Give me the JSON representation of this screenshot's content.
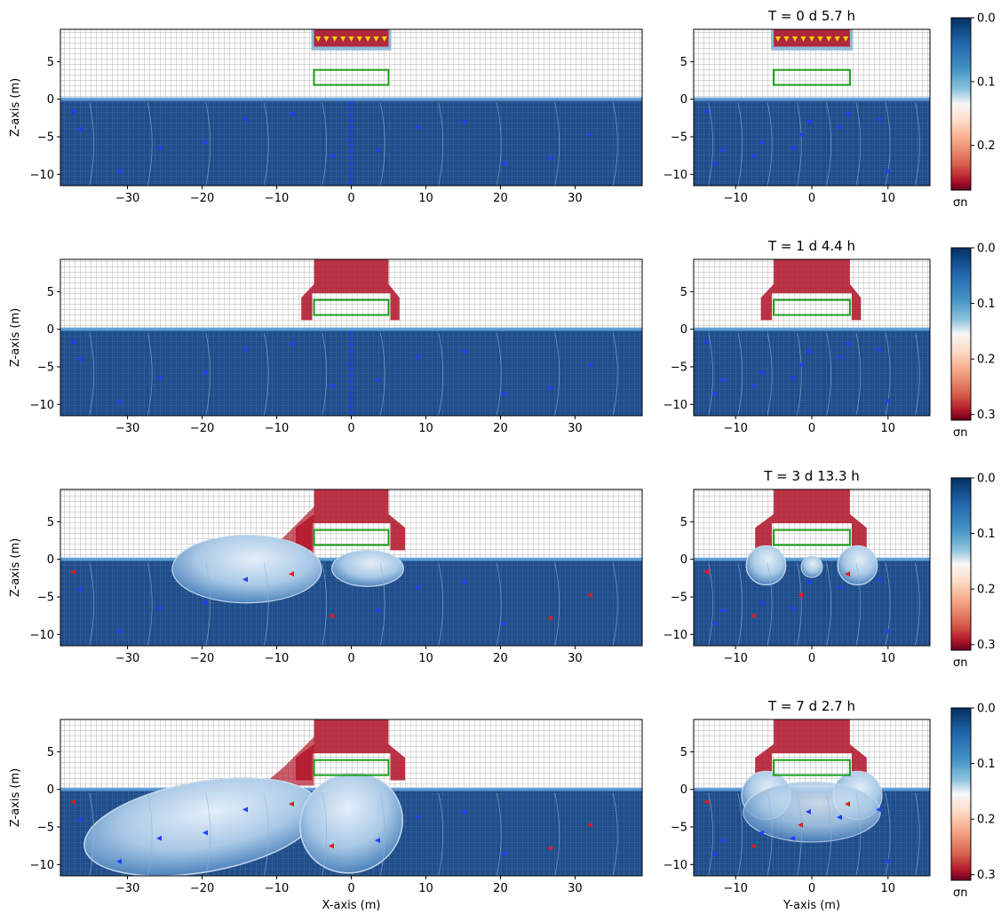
{
  "chart_data": {
    "type": "heatmap",
    "colorbar": {
      "label": "σn",
      "colormap": "RdBu",
      "max_color": "#67001f",
      "min_color": "#053061"
    },
    "panel_colors": {
      "water": "#1f4e8c",
      "interface": "#5a9bd5",
      "fracture": "#b2182b",
      "well_box": "#1a9e1a",
      "injection_arrows_initial": "#ffd400",
      "flow_arrows_red": "#e31a1c",
      "flow_arrows_blue": "#1f3fff"
    },
    "rows": [
      {
        "time_label": "T = 0 d  5.7 h",
        "stage": 0,
        "xz": {
          "xlabel": "",
          "ylabel": "Z-axis (m)",
          "xticks": [
            "−30",
            "−20",
            "−10",
            "0",
            "10",
            "20",
            "30"
          ],
          "yticks": [
            "0",
            "−5",
            "−10",
            "5"
          ],
          "xlim": [
            -39,
            39
          ],
          "ylim": [
            -11.5,
            9.3
          ]
        },
        "yz": {
          "xlabel": "",
          "xticks": [
            "−10",
            "0",
            "10"
          ],
          "yticks": [
            "0",
            "−5",
            "−10",
            "5"
          ],
          "xlim": [
            -15.5,
            15.5
          ],
          "ylim": [
            -11.5,
            9.3
          ]
        },
        "colorbar_ticks": [
          "0.0",
          "0.1",
          "0.2"
        ],
        "colorbar_range": [
          0,
          0.27
        ]
      },
      {
        "time_label": "T = 1 d  4.4 h",
        "stage": 1,
        "xz": {
          "xlabel": "",
          "ylabel": "Z-axis (m)",
          "xticks": [
            "−30",
            "−20",
            "−10",
            "0",
            "10",
            "20",
            "30"
          ],
          "yticks": [
            "0",
            "−5",
            "−10",
            "5"
          ],
          "xlim": [
            -39,
            39
          ],
          "ylim": [
            -11.5,
            9.3
          ]
        },
        "yz": {
          "xlabel": "",
          "xticks": [
            "−10",
            "0",
            "10"
          ],
          "yticks": [
            "0",
            "−5",
            "−10",
            "5"
          ],
          "xlim": [
            -15.5,
            15.5
          ],
          "ylim": [
            -11.5,
            9.3
          ]
        },
        "colorbar_ticks": [
          "0.0",
          "0.1",
          "0.2",
          "0.3"
        ],
        "colorbar_range": [
          0,
          0.31
        ]
      },
      {
        "time_label": "T = 3 d 13.3 h",
        "stage": 2,
        "xz": {
          "xlabel": "",
          "ylabel": "Z-axis (m)",
          "xticks": [
            "−30",
            "−20",
            "−10",
            "0",
            "10",
            "20",
            "30"
          ],
          "yticks": [
            "0",
            "−5",
            "−10",
            "5"
          ],
          "xlim": [
            -39,
            39
          ],
          "ylim": [
            -11.5,
            9.3
          ]
        },
        "yz": {
          "xlabel": "",
          "xticks": [
            "−10",
            "0",
            "10"
          ],
          "yticks": [
            "0",
            "−5",
            "−10",
            "5"
          ],
          "xlim": [
            -15.5,
            15.5
          ],
          "ylim": [
            -11.5,
            9.3
          ]
        },
        "colorbar_ticks": [
          "0.0",
          "0.1",
          "0.2",
          "0.3"
        ],
        "colorbar_range": [
          0,
          0.31
        ]
      },
      {
        "time_label": "T = 7 d  2.7 h",
        "stage": 3,
        "xz": {
          "xlabel": "X-axis (m)",
          "ylabel": "Z-axis (m)",
          "xticks": [
            "−30",
            "−20",
            "−10",
            "0",
            "10",
            "20",
            "30"
          ],
          "yticks": [
            "0",
            "−5",
            "−10",
            "5"
          ],
          "xlim": [
            -39,
            39
          ],
          "ylim": [
            -11.5,
            9.3
          ]
        },
        "yz": {
          "xlabel": "Y-axis (m)",
          "xticks": [
            "−10",
            "0",
            "10"
          ],
          "yticks": [
            "0",
            "−5",
            "−10",
            "5"
          ],
          "xlim": [
            -15.5,
            15.5
          ],
          "ylim": [
            -11.5,
            9.3
          ]
        },
        "colorbar_ticks": [
          "0.0",
          "0.1",
          "0.2",
          "0.3"
        ],
        "colorbar_range": [
          0,
          0.31
        ]
      }
    ]
  }
}
